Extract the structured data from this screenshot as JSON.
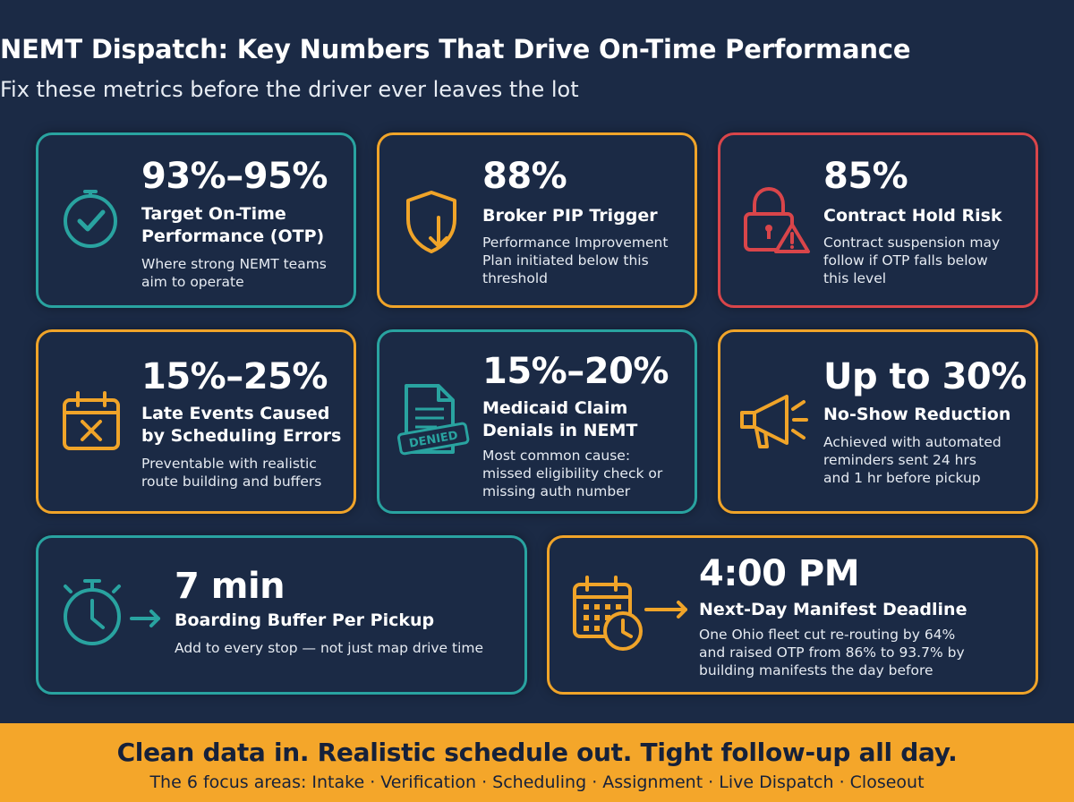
{
  "header": {
    "title": "NEMT Dispatch: Key Numbers That Drive On-Time Performance",
    "subtitle": "Fix these metrics before the driver ever leaves the lot"
  },
  "cards": [
    {
      "value": "93%–95%",
      "label_line1": "Target On-Time",
      "label_line2": "Performance (OTP)",
      "desc_line1": "Where strong NEMT teams",
      "desc_line2": "aim to operate",
      "icon": "clock-check-icon",
      "color": "#29a3a0"
    },
    {
      "value": "88%",
      "label_line1": "Broker PIP Trigger",
      "desc_line1": "Performance Improvement",
      "desc_line2": "Plan initiated below this",
      "desc_line3": "threshold",
      "icon": "shield-down-arrow-icon",
      "color": "#f0a429"
    },
    {
      "value": "85%",
      "label_line1": "Contract Hold Risk",
      "desc_line1": "Contract suspension may",
      "desc_line2": "follow if OTP falls below",
      "desc_line3": "this level",
      "icon": "lock-warning-icon",
      "color": "#d9454a"
    },
    {
      "value": "15%–25%",
      "label_line1": "Late Events Caused",
      "label_line2": "by Scheduling Errors",
      "desc_line1": "Preventable with realistic",
      "desc_line2": "route building and buffers",
      "icon": "calendar-x-icon",
      "color": "#f0a429"
    },
    {
      "value": "15%–20%",
      "label_line1": "Medicaid Claim",
      "label_line2": "Denials in NEMT",
      "desc_line1": "Most common cause:",
      "desc_line2": "missed eligibility check or",
      "desc_line3": "missing auth number",
      "icon": "denied-document-icon",
      "icon_text": "DENIED",
      "color": "#29a3a0"
    },
    {
      "value": "Up to 30%",
      "label_line1": "No-Show Reduction",
      "desc_line1": "Achieved with automated",
      "desc_line2": "reminders sent 24 hrs",
      "desc_line3": "and 1 hr before pickup",
      "icon": "megaphone-icon",
      "color": "#f0a429"
    },
    {
      "value": "7 min",
      "label_line1": "Boarding Buffer Per Pickup",
      "desc_line1": "Add to every stop — not just map drive time",
      "icon": "stopwatch-arrow-icon",
      "color": "#29a3a0"
    },
    {
      "value": "4:00 PM",
      "label_line1": "Next-Day Manifest Deadline",
      "desc_line1": "One Ohio fleet cut re-routing by 64%",
      "desc_line2": "and raised OTP from 86% to 93.7% by",
      "desc_line3": "building manifests the day before",
      "icon": "calendar-clock-arrow-icon",
      "color": "#f0a429"
    }
  ],
  "footer": {
    "headline": "Clean data in. Realistic schedule out. Tight follow-up all day.",
    "focus_areas": "The 6 focus areas: Intake · Verification · Scheduling · Assignment · Live Dispatch · Closeout",
    "background": "#f4a62a"
  }
}
